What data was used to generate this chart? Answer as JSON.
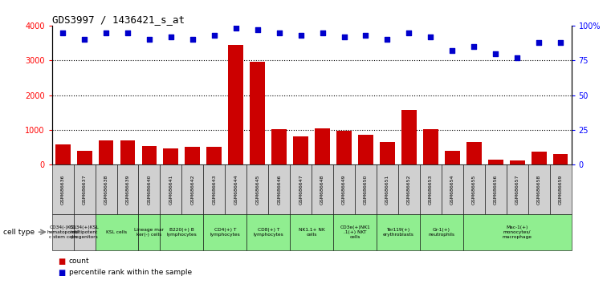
{
  "title": "GDS3997 / 1436421_s_at",
  "gsm_labels": [
    "GSM686636",
    "GSM686637",
    "GSM686638",
    "GSM686639",
    "GSM686640",
    "GSM686641",
    "GSM686642",
    "GSM686643",
    "GSM686644",
    "GSM686645",
    "GSM686646",
    "GSM686647",
    "GSM686648",
    "GSM686649",
    "GSM686650",
    "GSM686651",
    "GSM686652",
    "GSM686653",
    "GSM686654",
    "GSM686655",
    "GSM686656",
    "GSM686657",
    "GSM686658",
    "GSM686659"
  ],
  "counts": [
    580,
    390,
    700,
    700,
    530,
    460,
    510,
    520,
    3450,
    2950,
    1030,
    810,
    1040,
    980,
    870,
    660,
    1580,
    1020,
    410,
    660,
    140,
    130,
    380,
    310
  ],
  "percentile_ranks": [
    95,
    90,
    95,
    95,
    90,
    92,
    90,
    93,
    98,
    97,
    95,
    93,
    95,
    92,
    93,
    90,
    95,
    92,
    82,
    85,
    80,
    77,
    88,
    88
  ],
  "cell_type_groups": [
    {
      "label": "CD34(-)KSL\nhematopoieti\nc stem cells",
      "bars": [
        0,
        1
      ],
      "color": "#d0d0d0"
    },
    {
      "label": "CD34(+)KSL\nmultipotent\nprogenitors",
      "bars": [
        1,
        2
      ],
      "color": "#d0d0d0"
    },
    {
      "label": "KSL cells",
      "bars": [
        2,
        4
      ],
      "color": "#90ee90"
    },
    {
      "label": "Lineage mar\nker(-) cells",
      "bars": [
        4,
        5
      ],
      "color": "#90ee90"
    },
    {
      "label": "B220(+) B\nlymphocytes",
      "bars": [
        5,
        7
      ],
      "color": "#90ee90"
    },
    {
      "label": "CD4(+) T\nlymphocytes",
      "bars": [
        7,
        9
      ],
      "color": "#90ee90"
    },
    {
      "label": "CD8(+) T\nlymphocytes",
      "bars": [
        9,
        11
      ],
      "color": "#90ee90"
    },
    {
      "label": "NK1.1+ NK\ncells",
      "bars": [
        11,
        13
      ],
      "color": "#90ee90"
    },
    {
      "label": "CD3e(+)NK1\n.1(+) NKT\ncells",
      "bars": [
        13,
        15
      ],
      "color": "#90ee90"
    },
    {
      "label": "Ter119(+)\nerythroblasts",
      "bars": [
        15,
        17
      ],
      "color": "#90ee90"
    },
    {
      "label": "Gr-1(+)\nneutrophils",
      "bars": [
        17,
        19
      ],
      "color": "#90ee90"
    },
    {
      "label": "Mac-1(+)\nmonocytes/\nmacrophage",
      "bars": [
        19,
        24
      ],
      "color": "#90ee90"
    }
  ],
  "bar_color": "#cc0000",
  "dot_color": "#0000cc",
  "ylim_left": [
    0,
    4000
  ],
  "ylim_right": [
    0,
    100
  ],
  "yticks_left": [
    0,
    1000,
    2000,
    3000,
    4000
  ],
  "yticks_right": [
    0,
    25,
    50,
    75,
    100
  ],
  "yticklabels_right": [
    "0",
    "25",
    "50",
    "75",
    "100%"
  ],
  "background_color": "#ffffff"
}
